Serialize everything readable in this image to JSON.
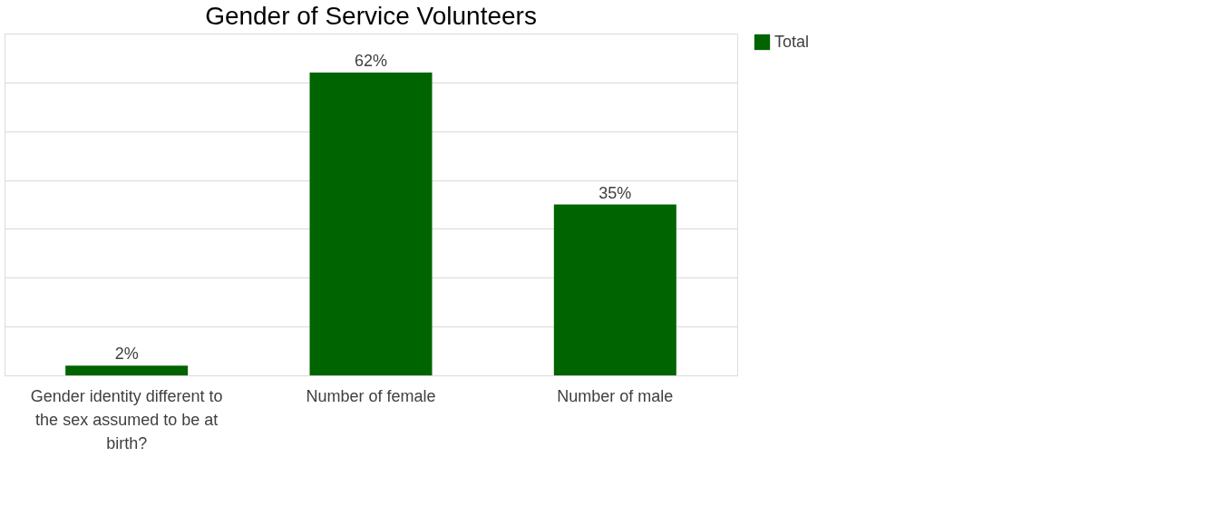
{
  "chart_data": {
    "type": "bar",
    "title": "Gender of Service Volunteers",
    "categories": [
      "Gender identity different to the sex assumed to be at birth?",
      "Number of female",
      "Number of male"
    ],
    "series": [
      {
        "name": "Total",
        "color": "#006400",
        "values": [
          2,
          62,
          35
        ],
        "value_labels": [
          "2%",
          "62%",
          "35%"
        ]
      }
    ],
    "ylim": [
      0,
      70
    ],
    "yticks": [
      {
        "value": 0,
        "label": null
      },
      {
        "value": 10,
        "label": null
      },
      {
        "value": 20,
        "label": null
      },
      {
        "value": 30,
        "label": null
      },
      {
        "value": 40,
        "label": null
      },
      {
        "value": 50,
        "label": null
      },
      {
        "value": 60,
        "label": null
      },
      {
        "value": 70,
        "label": null
      }
    ],
    "tick_labels": "x",
    "grid": "y",
    "legend": "right"
  }
}
